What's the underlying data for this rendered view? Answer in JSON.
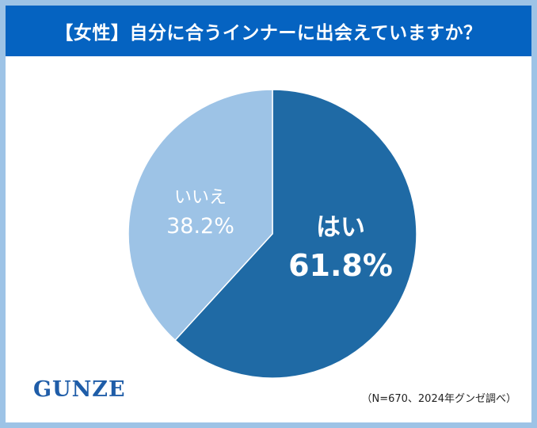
{
  "title": "【女性】自分に合うインナーに出会えていますか？",
  "logo": "GUNZE",
  "note": "（N=670、2024年グンゼ調べ）",
  "colors": {
    "header": "#0563c1",
    "border": "#9dc3e6",
    "yes": "#1f6aa5",
    "no": "#9dc3e6"
  },
  "chart_data": {
    "type": "pie",
    "title": "【女性】自分に合うインナーに出会えていますか？",
    "unit": "%",
    "slices": [
      {
        "label": "はい",
        "value": 61.8,
        "value_label": "61.8%",
        "color": "#1f6aa5"
      },
      {
        "label": "いいえ",
        "value": 38.2,
        "value_label": "38.2%",
        "color": "#9dc3e6"
      }
    ],
    "start": "12 o'clock",
    "direction": "clockwise"
  }
}
